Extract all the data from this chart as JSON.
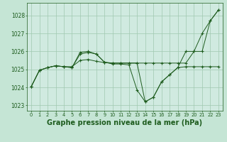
{
  "background_color": "#c5e5d5",
  "plot_bg_color": "#d0eae0",
  "grid_color": "#a0c8b0",
  "line_color": "#1e5c1e",
  "marker_color": "#1e5c1e",
  "title": "Graphe pression niveau de la mer (hPa)",
  "title_fontsize": 7,
  "xlim": [
    -0.5,
    23.5
  ],
  "ylim": [
    1022.7,
    1028.7
  ],
  "yticks": [
    1023,
    1024,
    1025,
    1026,
    1027,
    1028
  ],
  "xticks": [
    0,
    1,
    2,
    3,
    4,
    5,
    6,
    7,
    8,
    9,
    10,
    11,
    12,
    13,
    14,
    15,
    16,
    17,
    18,
    19,
    20,
    21,
    22,
    23
  ],
  "series": [
    [
      1024.05,
      1024.95,
      1025.1,
      1025.2,
      1025.15,
      1025.15,
      1025.5,
      1025.55,
      1025.45,
      1025.38,
      1025.35,
      1025.35,
      1025.35,
      1025.35,
      1025.35,
      1025.35,
      1025.35,
      1025.35,
      1025.35,
      1025.35,
      1026.0,
      1026.0,
      1027.7,
      1028.3
    ],
    [
      1024.05,
      1024.95,
      1025.1,
      1025.2,
      1025.15,
      1025.1,
      1025.95,
      1026.0,
      1025.85,
      1025.4,
      1025.3,
      1025.3,
      1025.25,
      1023.85,
      1023.2,
      1023.45,
      1024.3,
      1024.7,
      1025.1,
      1025.15,
      1025.15,
      1025.15,
      1025.15,
      1025.15
    ],
    [
      1024.05,
      1024.95,
      1025.1,
      1025.2,
      1025.15,
      1025.1,
      1025.85,
      1025.95,
      1025.85,
      1025.4,
      1025.35,
      1025.35,
      1025.35,
      1025.35,
      1023.2,
      1023.45,
      1024.3,
      1024.7,
      1025.1,
      1026.0,
      1026.0,
      1027.0,
      1027.7,
      1028.3
    ]
  ]
}
